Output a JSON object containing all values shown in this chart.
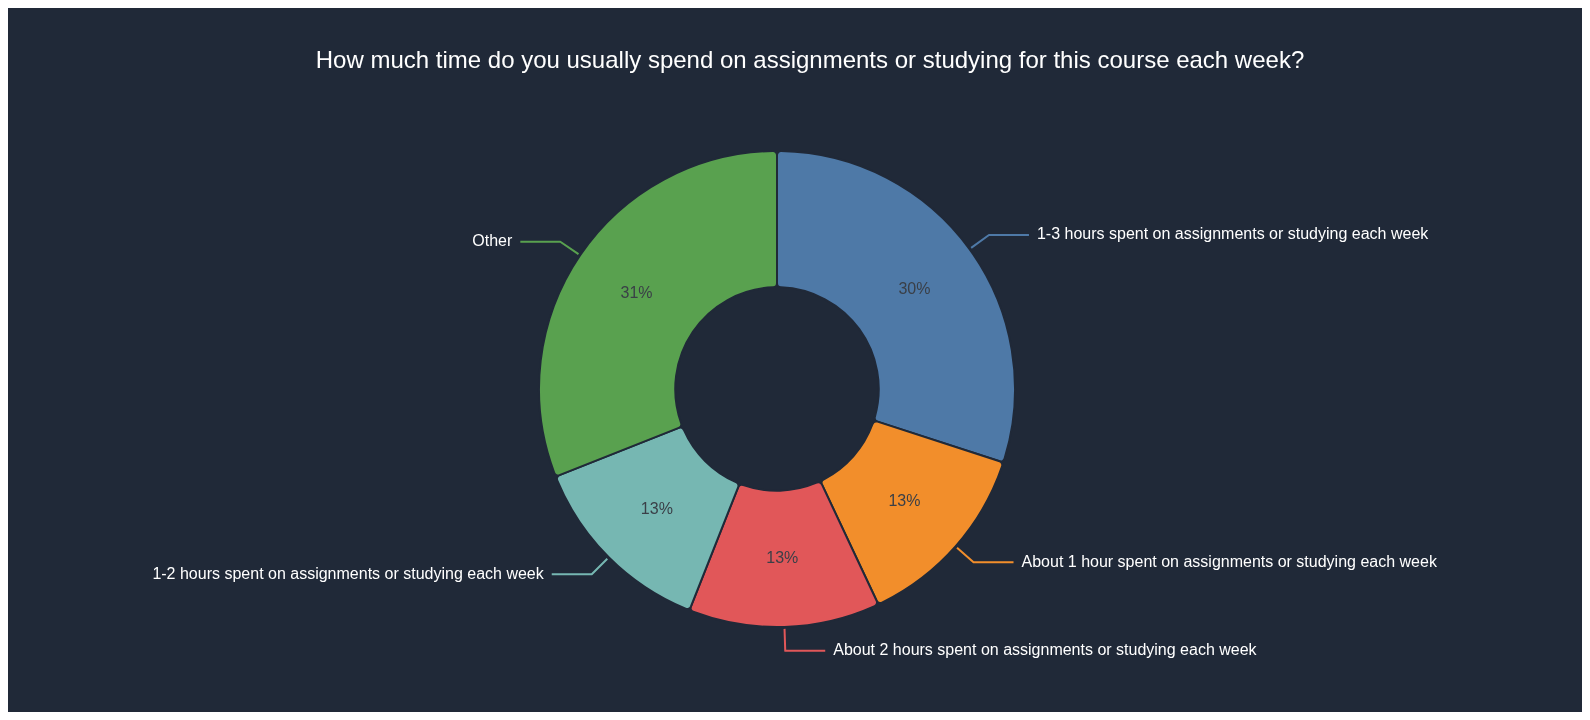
{
  "chart_data": {
    "type": "donut",
    "title": "How much time do you usually spend on assignments or studying for this course each week?",
    "categories": [
      "1-3 hours spent on assignments or studying each week",
      "About 1 hour spent on assignments or studying each week",
      "About 2 hours spent on assignments or studying each week",
      "1-2 hours spent on assignments or studying each week",
      "Other"
    ],
    "values": [
      30,
      13,
      13,
      13,
      31
    ],
    "value_labels": [
      "30%",
      "13%",
      "13%",
      "13%",
      "31%"
    ],
    "colors": [
      "#4e79a7",
      "#f28e2b",
      "#e15759",
      "#76b7b2",
      "#59a14f"
    ],
    "legend": false
  }
}
